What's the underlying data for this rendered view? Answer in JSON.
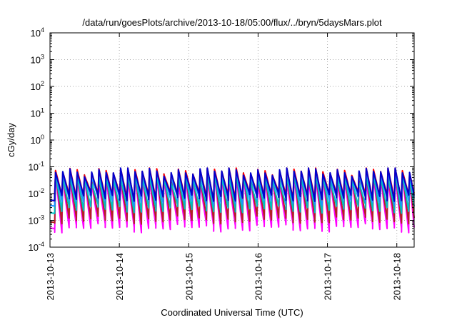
{
  "chart_data": {
    "type": "line",
    "title": "/data/run/goesPlots/archive/2013-10-18/05:00/flux/../bryn/5daysMars.plot",
    "xlabel": "Coordinated Universal Time (UTC)",
    "ylabel": "cGy/day",
    "yscale": "log",
    "ylim": [
      0.0001,
      10000
    ],
    "xlim": [
      "2013-10-13T00:00",
      "2013-10-18T06:00"
    ],
    "grid": true,
    "legend": "none",
    "x_ticks": [
      "2013-10-13",
      "2013-10-14",
      "2013-10-15",
      "2013-10-16",
      "2013-10-17",
      "2013-10-18"
    ],
    "y_ticks": [
      {
        "value": 0.0001,
        "base": "10",
        "exp": "-4"
      },
      {
        "value": 0.001,
        "base": "10",
        "exp": "-3"
      },
      {
        "value": 0.01,
        "base": "10",
        "exp": "-2"
      },
      {
        "value": 0.1,
        "base": "10",
        "exp": "-1"
      },
      {
        "value": 1,
        "base": "10",
        "exp": "0"
      },
      {
        "value": 10,
        "base": "10",
        "exp": "1"
      },
      {
        "value": 100,
        "base": "10",
        "exp": "2"
      },
      {
        "value": 1000,
        "base": "10",
        "exp": "3"
      },
      {
        "value": 10000,
        "base": "10",
        "exp": "4"
      }
    ],
    "sawtooth": {
      "period_hours": 2.5,
      "series": [
        {
          "color": "#ff00ff",
          "peak": 0.035,
          "trough": 0.0006
        },
        {
          "color": "#b22222",
          "peak": 0.05,
          "trough": 0.0012
        },
        {
          "color": "#00bfbf",
          "peak": 0.04,
          "trough": 0.003
        },
        {
          "color": "#1e90ff",
          "peak": 0.06,
          "trough": 0.006
        },
        {
          "color": "#ff0000",
          "peak": 0.075,
          "trough": 0.009
        },
        {
          "color": "#0000cd",
          "peak": 0.07,
          "trough": 0.008
        }
      ]
    }
  }
}
